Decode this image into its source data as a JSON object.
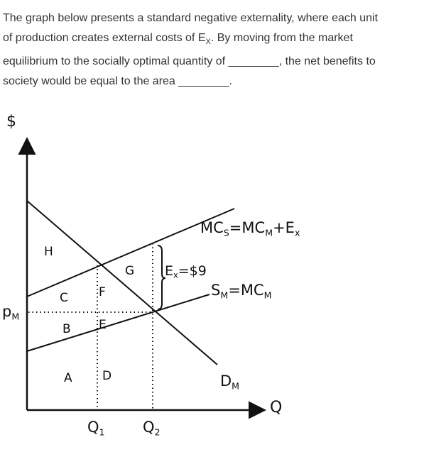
{
  "question": {
    "line1": "The graph below presents a standard negative externality, where each unit",
    "line2a": "of production creates external costs of E",
    "line2sub": "X",
    "line2b": ". By moving from the market",
    "line3a": "equilibrium to the socially optimal quantity of ",
    "blank1": "________",
    "line3b": ", the net benefits to",
    "line4a": "society would be equal to the area ",
    "blank2": "________",
    "line4b": "."
  },
  "diagram": {
    "y_axis_label": "$",
    "x_axis_label": "Q",
    "price_label": [
      "p",
      "M"
    ],
    "q1_label": [
      "Q",
      "1"
    ],
    "q2_label": [
      "Q",
      "2"
    ],
    "social_cost_label": [
      "MC",
      "S",
      "=MC",
      "M",
      "+E",
      "x"
    ],
    "supply_label": [
      "S",
      "M",
      "=MC",
      "M"
    ],
    "demand_label": [
      "D",
      "M"
    ],
    "externality_label": [
      "E",
      "x",
      "=$9"
    ],
    "areas": [
      "H",
      "G",
      "C",
      "F",
      "B",
      "E",
      "A",
      "D"
    ]
  }
}
